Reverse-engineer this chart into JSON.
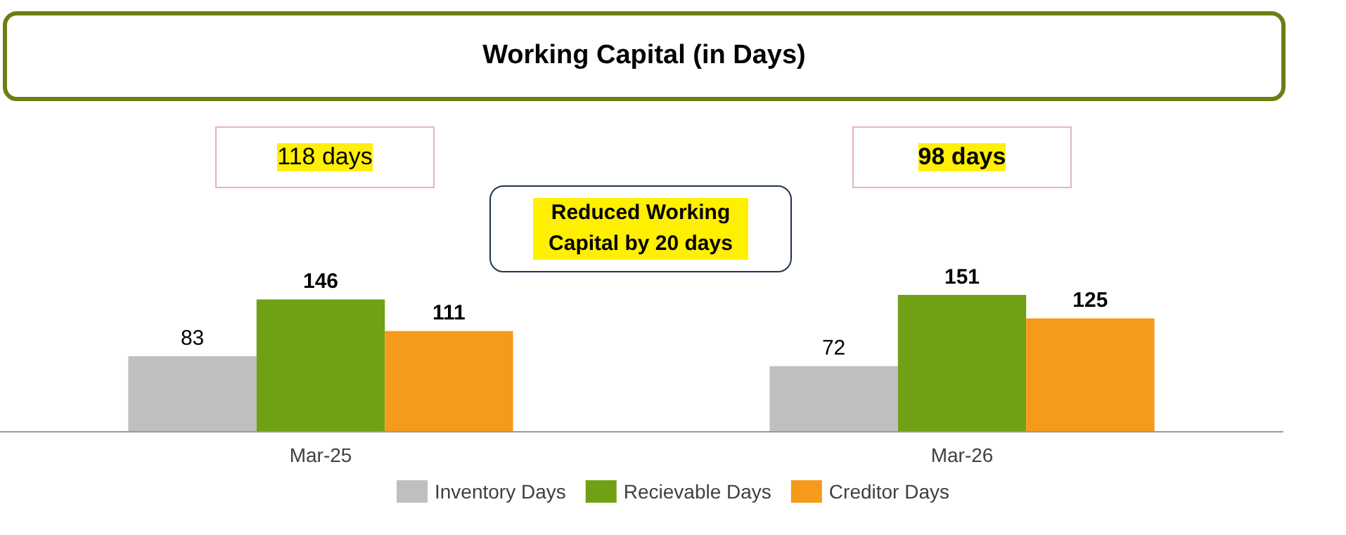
{
  "chart_data": {
    "type": "bar",
    "title": "Working Capital (in Days)",
    "categories": [
      "Mar-25",
      "Mar-26"
    ],
    "series": [
      {
        "name": "Inventory Days",
        "color": "#bfbfbf",
        "values": [
          83,
          72
        ]
      },
      {
        "name": "Recievable Days",
        "color": "#70a014",
        "values": [
          146,
          151
        ]
      },
      {
        "name": "Creditor Days",
        "color": "#f59a1a",
        "values": [
          111,
          125
        ]
      }
    ],
    "data_labels": true,
    "legend": "bottom",
    "annotations": [
      "118 days",
      "98 days",
      "Reduced Working Capital by 20 days"
    ]
  }
}
